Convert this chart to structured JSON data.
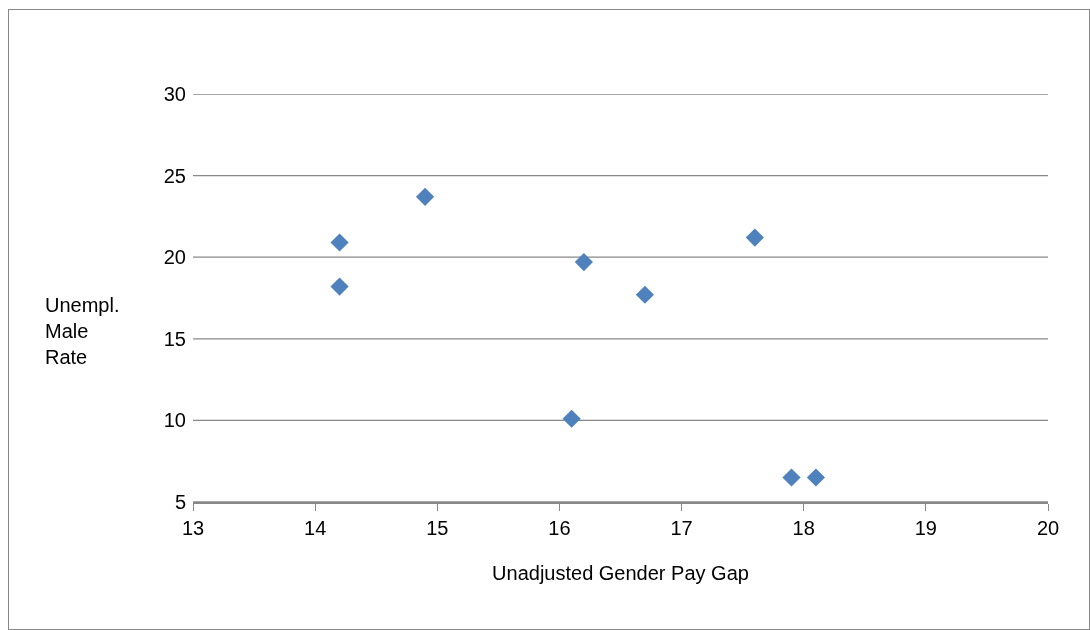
{
  "chart_data": {
    "type": "scatter",
    "xlabel": "Unadjusted Gender Pay Gap",
    "ylabel": "Unempl. Male Rate",
    "x": [
      14.2,
      14.2,
      14.9,
      16.2,
      16.1,
      16.7,
      17.6,
      17.9,
      18.1
    ],
    "series": [
      {
        "color": "#4f81bd",
        "values": [
          20.9,
          18.2,
          23.7,
          19.7,
          10.1,
          17.7,
          21.2,
          6.5,
          6.5
        ]
      }
    ],
    "xlim": [
      13,
      20
    ],
    "xticks": [
      13,
      14,
      15,
      16,
      17,
      18,
      19,
      20
    ],
    "ylim": [
      5,
      30
    ],
    "yticks": [
      5,
      10,
      15,
      20,
      25,
      30
    ],
    "grid": "y",
    "legend": false,
    "marker": "diamond"
  }
}
